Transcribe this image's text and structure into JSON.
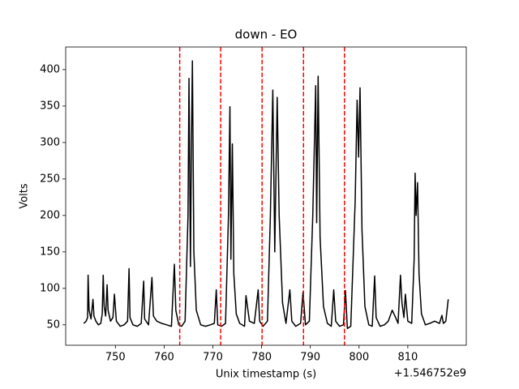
{
  "chart_data": {
    "type": "line",
    "title": "down - EO",
    "xlabel": "Unix timestamp (s)",
    "ylabel": "Volts",
    "x_offset_label": "+1.546752e9",
    "color": "#000000",
    "x": [
      743.5,
      744.0,
      744.3,
      744.4,
      744.6,
      745.0,
      745.4,
      745.6,
      746.0,
      746.5,
      747.0,
      747.3,
      747.5,
      747.7,
      748.0,
      748.3,
      748.5,
      749.0,
      749.5,
      749.8,
      750.2,
      751.0,
      751.8,
      752.5,
      752.8,
      753.0,
      753.6,
      754.5,
      755.3,
      755.8,
      756.0,
      756.8,
      757.5,
      757.8,
      758.5,
      759.5,
      760.5,
      761.5,
      762.1,
      762.4,
      763.0,
      763.6,
      764.3,
      764.9,
      765.1,
      765.4,
      765.6,
      765.8,
      766.1,
      766.6,
      767.5,
      768.5,
      769.5,
      770.3,
      770.7,
      771.0,
      771.8,
      772.6,
      773.2,
      773.5,
      773.7,
      774.0,
      774.3,
      774.8,
      775.5,
      776.5,
      776.8,
      777.5,
      778.5,
      779.3,
      779.6,
      780.3,
      781.2,
      781.8,
      782.3,
      782.7,
      783.2,
      783.6,
      784.3,
      785.0,
      785.8,
      786.2,
      787.0,
      788.0,
      788.5,
      789.0,
      789.8,
      790.5,
      791.1,
      791.3,
      791.6,
      792.0,
      792.7,
      793.5,
      794.3,
      794.8,
      795.2,
      796.0,
      796.8,
      797.2,
      797.6,
      798.3,
      799.2,
      799.6,
      799.9,
      800.2,
      800.6,
      801.2,
      802.0,
      802.7,
      803.2,
      803.5,
      804.3,
      805.2,
      806.0,
      806.8,
      807.5,
      808.0,
      808.5,
      808.8,
      809.2,
      809.5,
      810.0,
      810.8,
      811.3,
      811.5,
      811.7,
      812.0,
      812.3,
      812.8,
      813.6,
      814.5,
      815.5,
      816.5,
      817.0,
      817.3,
      817.8,
      818.3
    ],
    "values": [
      52,
      55,
      60,
      118,
      70,
      58,
      85,
      62,
      55,
      50,
      52,
      65,
      118,
      75,
      62,
      105,
      70,
      55,
      60,
      92,
      55,
      48,
      50,
      55,
      127,
      60,
      50,
      48,
      52,
      110,
      58,
      50,
      115,
      62,
      55,
      52,
      50,
      48,
      133,
      70,
      50,
      48,
      55,
      200,
      388,
      130,
      300,
      412,
      150,
      70,
      50,
      48,
      50,
      52,
      98,
      50,
      48,
      52,
      200,
      349,
      140,
      298,
      120,
      65,
      52,
      48,
      90,
      55,
      52,
      98,
      55,
      48,
      55,
      200,
      372,
      150,
      362,
      200,
      80,
      52,
      98,
      55,
      48,
      52,
      95,
      50,
      55,
      200,
      378,
      190,
      391,
      170,
      75,
      52,
      48,
      98,
      55,
      48,
      50,
      97,
      45,
      48,
      220,
      358,
      280,
      375,
      180,
      75,
      50,
      48,
      117,
      60,
      48,
      50,
      55,
      70,
      60,
      52,
      118,
      80,
      60,
      92,
      55,
      52,
      140,
      258,
      200,
      245,
      120,
      65,
      50,
      52,
      55,
      52,
      63,
      52,
      55,
      85
    ],
    "vlines": [
      763.2,
      771.6,
      780.1,
      788.6,
      797.0
    ],
    "vline_color": "#ff0000",
    "xlim": [
      739.8,
      822.0
    ],
    "ylim": [
      22,
      431
    ],
    "xticks": [
      750,
      760,
      770,
      780,
      790,
      800,
      810
    ],
    "yticks": [
      50,
      100,
      150,
      200,
      250,
      300,
      350,
      400
    ]
  }
}
